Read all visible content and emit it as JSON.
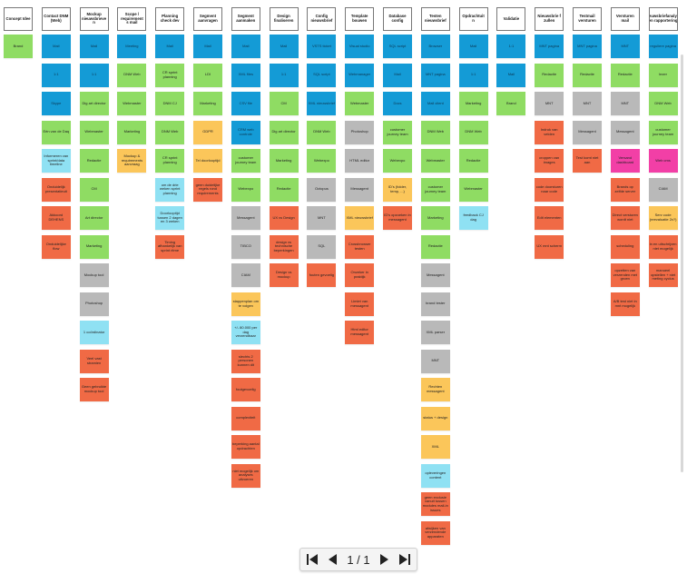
{
  "colors": {
    "blue": "#149bd6",
    "green": "#8fdc63",
    "grey": "#b9b9b9",
    "red": "#f06a45",
    "orange": "#fbc65a",
    "lightblue": "#8fe1f3",
    "pink": "#f23fa6"
  },
  "pager": {
    "page_indicator": "1 / 1",
    "icons": [
      "first-page-icon",
      "previous-page-icon",
      "next-page-icon",
      "last-page-icon"
    ]
  },
  "columns": [
    {
      "title": "Concept Idee",
      "notes": [
        {
          "text": "Brand",
          "color": "green"
        }
      ]
    },
    {
      "title": "Contact DNM (Web)",
      "notes": [
        {
          "text": "Mail",
          "color": "blue"
        },
        {
          "text": "1:1",
          "color": "blue"
        },
        {
          "text": "Skype",
          "color": "blue"
        },
        {
          "text": "Eén van de Daq",
          "color": "green"
        },
        {
          "text": "Informeren van sprint/data timeline",
          "color": "lightblue"
        },
        {
          "text": "Onduidelijk presentatieuit",
          "color": "red"
        },
        {
          "text": "Akkoord DEHENS",
          "color": "red"
        },
        {
          "text": "Onduidelijke flow",
          "color": "red"
        }
      ]
    },
    {
      "title": "Mockup nieuwsbrieve n",
      "notes": [
        {
          "text": "Mail",
          "color": "blue"
        },
        {
          "text": "1:1",
          "color": "blue"
        },
        {
          "text": "Dig art director",
          "color": "green"
        },
        {
          "text": "Webmaster",
          "color": "green"
        },
        {
          "text": "Redactie",
          "color": "green"
        },
        {
          "text": "CM",
          "color": "green"
        },
        {
          "text": "Art director",
          "color": "green"
        },
        {
          "text": "Marketing",
          "color": "green"
        },
        {
          "text": "Mockup tool",
          "color": "grey"
        },
        {
          "text": "Photoshop",
          "color": "grey"
        },
        {
          "text": "1 coördinator",
          "color": "lightblue"
        },
        {
          "text": "Veel vast stramien",
          "color": "red"
        },
        {
          "text": "Geen gebruikte mockup tool",
          "color": "red"
        }
      ]
    },
    {
      "title": "Scope / requirement s mail",
      "notes": [
        {
          "text": "Meeting",
          "color": "blue"
        },
        {
          "text": "DNM Web",
          "color": "green"
        },
        {
          "text": "Webmaster",
          "color": "green"
        },
        {
          "text": "Marketing",
          "color": "green"
        },
        {
          "text": "Mockup & requirements aanvraag",
          "color": "orange"
        }
      ]
    },
    {
      "title": "Planning check dev",
      "notes": [
        {
          "text": "Mail",
          "color": "blue"
        },
        {
          "text": "CR sprint planning",
          "color": "green"
        },
        {
          "text": "DNM CJ",
          "color": "green"
        },
        {
          "text": "DNM Web",
          "color": "green"
        },
        {
          "text": "CR sprint planning",
          "color": "green"
        },
        {
          "text": "om de drie weken sprint planning",
          "color": "lightblue"
        },
        {
          "text": "Doorlooptijd tussen 2 dagen en 3 weken",
          "color": "lightblue"
        },
        {
          "text": "Timing afhankelijk van sprint ritme",
          "color": "red"
        }
      ]
    },
    {
      "title": "Segment aanvragen",
      "notes": [
        {
          "text": "Mail",
          "color": "blue"
        },
        {
          "text": "LDI",
          "color": "green"
        },
        {
          "text": "Marketing",
          "color": "green"
        },
        {
          "text": "GDPR",
          "color": "orange"
        },
        {
          "text": "Tel doorlooptijd",
          "color": "orange"
        },
        {
          "text": "geen duidelijke regels rond requirements",
          "color": "red"
        }
      ]
    },
    {
      "title": "Segment aanmaken",
      "notes": [
        {
          "text": "Mail",
          "color": "blue"
        },
        {
          "text": "XML files",
          "color": "blue"
        },
        {
          "text": "CSV file",
          "color": "blue"
        },
        {
          "text": "CRM web controle",
          "color": "blue"
        },
        {
          "text": "customer journey team",
          "color": "green"
        },
        {
          "text": "Webexpo",
          "color": "green"
        },
        {
          "text": "Messagent",
          "color": "grey"
        },
        {
          "text": "TIBCO",
          "color": "grey"
        },
        {
          "text": "CIAM",
          "color": "grey"
        },
        {
          "text": "stappenplan om te volgen",
          "color": "orange"
        },
        {
          "text": "+/- 80.000 per dag verzendbaar",
          "color": "lightblue"
        },
        {
          "text": "slechts 2 personen kunnen dit",
          "color": "red"
        },
        {
          "text": "foutgevoelig",
          "color": "red"
        },
        {
          "text": "complexiteit",
          "color": "red"
        },
        {
          "text": "beperking aantal opdrachten",
          "color": "red"
        },
        {
          "text": "niet mogelijk om analyses uitvoeren",
          "color": "red"
        }
      ]
    },
    {
      "title": "Design finaliseren",
      "notes": [
        {
          "text": "Mail",
          "color": "blue"
        },
        {
          "text": "1:1",
          "color": "blue"
        },
        {
          "text": "CM",
          "color": "green"
        },
        {
          "text": "Dig art director",
          "color": "green"
        },
        {
          "text": "Marketing",
          "color": "green"
        },
        {
          "text": "Redactie",
          "color": "green"
        },
        {
          "text": "UX vs Design",
          "color": "red"
        },
        {
          "text": "design vs technische beperkingen",
          "color": "red"
        },
        {
          "text": "Design vs mockup",
          "color": "red"
        }
      ]
    },
    {
      "title": "Config nieuwsbrief",
      "notes": [
        {
          "text": "VSTS ticket",
          "color": "blue"
        },
        {
          "text": "SQL script",
          "color": "blue"
        },
        {
          "text": "XML nieuwsbrief",
          "color": "blue"
        },
        {
          "text": "DNM Web",
          "color": "green"
        },
        {
          "text": "Webexpo",
          "color": "green"
        },
        {
          "text": "Octopus",
          "color": "grey"
        },
        {
          "text": "MNT",
          "color": "grey"
        },
        {
          "text": "SQL",
          "color": "grey"
        },
        {
          "text": "fouten gevoelig",
          "color": "red"
        }
      ]
    },
    {
      "title": "Template bouwen",
      "notes": [
        {
          "text": "Visual studio",
          "color": "blue"
        },
        {
          "text": "Webmanager",
          "color": "blue"
        },
        {
          "text": "Webmaster",
          "color": "green"
        },
        {
          "text": "Photoshop",
          "color": "grey"
        },
        {
          "text": "HTML editor",
          "color": "grey"
        },
        {
          "text": "Messagent",
          "color": "grey"
        },
        {
          "text": "XML nieuwsbrief",
          "color": "orange"
        },
        {
          "text": "Crossbrowser testen",
          "color": "red"
        },
        {
          "text": "Onzeker in praktijk",
          "color": "red"
        },
        {
          "text": "Limiet van messagent",
          "color": "red"
        },
        {
          "text": "Html editor messagent",
          "color": "red"
        }
      ]
    },
    {
      "title": "Database config",
      "notes": [
        {
          "text": "SQL script",
          "color": "blue"
        },
        {
          "text": "Mail",
          "color": "blue"
        },
        {
          "text": "Docs",
          "color": "blue"
        },
        {
          "text": "customer journey team",
          "color": "green"
        },
        {
          "text": "Webexpo",
          "color": "green"
        },
        {
          "text": "ID's (folder, temp, ...)",
          "color": "orange"
        },
        {
          "text": "ID's opzoeken in messagent",
          "color": "red"
        }
      ]
    },
    {
      "title": "Testen nieuwsbrief",
      "notes": [
        {
          "text": "Browser",
          "color": "blue"
        },
        {
          "text": "MNT pagina",
          "color": "blue"
        },
        {
          "text": "Mail client",
          "color": "blue"
        },
        {
          "text": "DNM Web",
          "color": "green"
        },
        {
          "text": "Webmaster",
          "color": "green"
        },
        {
          "text": "customer journey team",
          "color": "green"
        },
        {
          "text": "Marketing",
          "color": "green"
        },
        {
          "text": "Redactie",
          "color": "green"
        },
        {
          "text": "Messagent",
          "color": "grey"
        },
        {
          "text": "brand tester",
          "color": "grey"
        },
        {
          "text": "XML parser",
          "color": "grey"
        },
        {
          "text": "MNT",
          "color": "grey"
        },
        {
          "text": "Rechten messagent",
          "color": "orange"
        },
        {
          "text": "status + design",
          "color": "orange"
        },
        {
          "text": "XML",
          "color": "orange"
        },
        {
          "text": "opleveringen content",
          "color": "lightblue"
        },
        {
          "text": "geen exclusie vanuit tussen modules mail-in issues",
          "color": "red"
        },
        {
          "text": "afwijken van verzendende apparaten",
          "color": "red"
        }
      ]
    },
    {
      "title": "Opdrachtuit n",
      "notes": [
        {
          "text": "Mail",
          "color": "blue"
        },
        {
          "text": "1:1",
          "color": "blue"
        },
        {
          "text": "Marketing",
          "color": "green"
        },
        {
          "text": "DNM Web",
          "color": "green"
        },
        {
          "text": "Redactie",
          "color": "green"
        },
        {
          "text": "Webmaster",
          "color": "green"
        },
        {
          "text": "feedback CJ dag",
          "color": "lightblue"
        }
      ]
    },
    {
      "title": "Validatie",
      "notes": [
        {
          "text": "1:1",
          "color": "blue"
        },
        {
          "text": "Mail",
          "color": "blue"
        },
        {
          "text": "Brand",
          "color": "green"
        }
      ]
    },
    {
      "title": "Nieuwsbrie f zullen",
      "notes": [
        {
          "text": "MNT pagina",
          "color": "blue"
        },
        {
          "text": "Redactie",
          "color": "green"
        },
        {
          "text": "MNT",
          "color": "grey"
        },
        {
          "text": "Indruk van velden",
          "color": "red"
        },
        {
          "text": "croppen van images",
          "color": "red"
        },
        {
          "text": "code doorsturen naar code",
          "color": "red"
        },
        {
          "text": "Edit elementen",
          "color": "red"
        },
        {
          "text": "UX mnt scherm",
          "color": "red"
        }
      ]
    },
    {
      "title": "Testmail versturen",
      "notes": [
        {
          "text": "MNT pagina",
          "color": "blue"
        },
        {
          "text": "Redactie",
          "color": "green"
        },
        {
          "text": "MNT",
          "color": "grey"
        },
        {
          "text": "Messagent",
          "color": "grey"
        },
        {
          "text": "Test komt niet aan",
          "color": "red"
        }
      ]
    },
    {
      "title": "Versturen mail",
      "notes": [
        {
          "text": "MNT",
          "color": "blue"
        },
        {
          "text": "Redactie",
          "color": "green"
        },
        {
          "text": "MNT",
          "color": "grey"
        },
        {
          "text": "Messagent",
          "color": "grey"
        },
        {
          "text": "Versand dashboard",
          "color": "pink"
        },
        {
          "text": "Brands op zelfde server",
          "color": "red"
        },
        {
          "text": "Direct versturen wordt niet",
          "color": "red"
        },
        {
          "text": "scheduling",
          "color": "red"
        },
        {
          "text": "opzetten van verzenden met groen",
          "color": "red"
        },
        {
          "text": "A/B test niet in mnt mogelijk",
          "color": "red"
        }
      ]
    },
    {
      "title": "Nieuwsbriefanalyse en rapportering",
      "notes": [
        {
          "text": "reguliere pagina",
          "color": "blue"
        },
        {
          "text": "lezer",
          "color": "green"
        },
        {
          "text": "DNM Web",
          "color": "green"
        },
        {
          "text": "customer journey team",
          "color": "green"
        },
        {
          "text": "Web cms",
          "color": "pink"
        },
        {
          "text": "CIAM",
          "color": "grey"
        },
        {
          "text": "Serv code (reevaluatie 2x?)",
          "color": "orange"
        },
        {
          "text": "in en uitschrijven niet mogelijk",
          "color": "red"
        },
        {
          "text": "manueel opstellen + niet meting cyclus",
          "color": "red"
        }
      ]
    }
  ]
}
